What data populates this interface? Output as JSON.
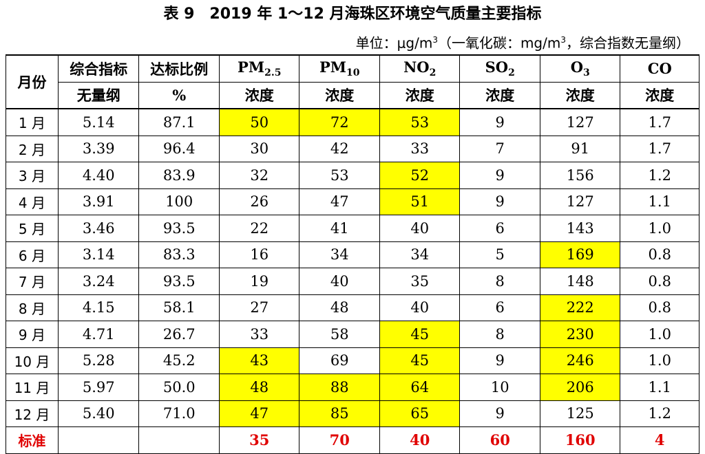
{
  "title": "表 9　2019 年 1～12 月海珠区环境空气质量主要指标",
  "unit": {
    "prefix": "单位：μg/m",
    "sup1": "3",
    "middle": "（一氧化碳：mg/m",
    "sup2": "3",
    "suffix": "，综合指数无量纲）"
  },
  "headers": {
    "month": "月份",
    "index_top": "综合指标",
    "index_bottom": "无量纲",
    "ratio_top": "达标比例",
    "ratio_bottom": "%",
    "pm25_base": "PM",
    "pm25_sub": "2.5",
    "pm10_base": "PM",
    "pm10_sub": "10",
    "no2_base": "NO",
    "no2_sub": "2",
    "so2_base": "SO",
    "so2_sub": "2",
    "o3_base": "O",
    "o3_sub": "3",
    "co": "CO",
    "conc": "浓度"
  },
  "rows": [
    {
      "month": "1 月",
      "index": "5.14",
      "ratio": "87.1",
      "pm25": "50",
      "pm10": "72",
      "no2": "53",
      "so2": "9",
      "o3": "127",
      "co": "1.7"
    },
    {
      "month": "2 月",
      "index": "3.39",
      "ratio": "96.4",
      "pm25": "30",
      "pm10": "42",
      "no2": "33",
      "so2": "7",
      "o3": "91",
      "co": "1.7"
    },
    {
      "month": "3 月",
      "index": "4.40",
      "ratio": "83.9",
      "pm25": "32",
      "pm10": "53",
      "no2": "52",
      "so2": "9",
      "o3": "156",
      "co": "1.2"
    },
    {
      "month": "4 月",
      "index": "3.91",
      "ratio": "100",
      "pm25": "26",
      "pm10": "47",
      "no2": "51",
      "so2": "9",
      "o3": "127",
      "co": "1.1"
    },
    {
      "month": "5 月",
      "index": "3.46",
      "ratio": "93.5",
      "pm25": "22",
      "pm10": "41",
      "no2": "40",
      "so2": "6",
      "o3": "143",
      "co": "1.0"
    },
    {
      "month": "6 月",
      "index": "3.14",
      "ratio": "83.3",
      "pm25": "16",
      "pm10": "34",
      "no2": "34",
      "so2": "5",
      "o3": "169",
      "co": "0.8"
    },
    {
      "month": "7 月",
      "index": "3.24",
      "ratio": "93.5",
      "pm25": "19",
      "pm10": "40",
      "no2": "35",
      "so2": "8",
      "o3": "148",
      "co": "0.8"
    },
    {
      "month": "8 月",
      "index": "4.15",
      "ratio": "58.1",
      "pm25": "27",
      "pm10": "48",
      "no2": "40",
      "so2": "6",
      "o3": "222",
      "co": "0.8"
    },
    {
      "month": "9 月",
      "index": "4.71",
      "ratio": "26.7",
      "pm25": "33",
      "pm10": "58",
      "no2": "45",
      "so2": "8",
      "o3": "230",
      "co": "1.0"
    },
    {
      "month": "10 月",
      "index": "5.28",
      "ratio": "45.2",
      "pm25": "43",
      "pm10": "69",
      "no2": "45",
      "so2": "9",
      "o3": "246",
      "co": "1.0"
    },
    {
      "month": "11 月",
      "index": "5.97",
      "ratio": "50.0",
      "pm25": "48",
      "pm10": "88",
      "no2": "64",
      "so2": "10",
      "o3": "206",
      "co": "1.1"
    },
    {
      "month": "12 月",
      "index": "5.40",
      "ratio": "71.0",
      "pm25": "47",
      "pm10": "85",
      "no2": "65",
      "so2": "9",
      "o3": "125",
      "co": "1.2"
    }
  ],
  "standard": {
    "label": "标准",
    "index": "",
    "ratio": "",
    "pm25": "35",
    "pm10": "70",
    "no2": "40",
    "so2": "60",
    "o3": "160",
    "co": "4"
  },
  "colors": {
    "highlight": "#ffff00",
    "standard_text": "#e00000"
  }
}
